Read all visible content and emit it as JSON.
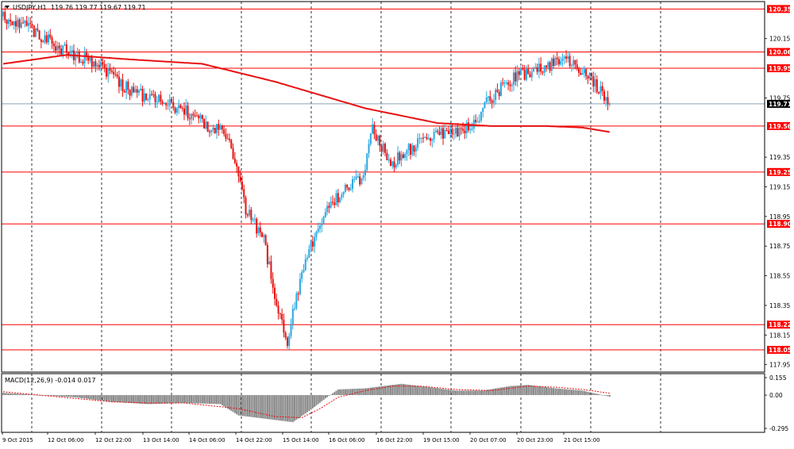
{
  "header": {
    "symbol": "USDJPY,H1",
    "ohlc": "119.76 119.77 119.67 119.71"
  },
  "macd_panel": {
    "label": "MACD(12,26,9) -0.014 0.017"
  },
  "colors": {
    "bull": "#2aa8e0",
    "bear": "#e81010",
    "level_line": "#ff0000",
    "moving_average": "#e81010",
    "grid": "#000000",
    "macd_hist": "#808080",
    "signal": "#e81010",
    "current_price_line": "#8aa0b8"
  },
  "chart_data": [
    {
      "type": "candlestick",
      "symbol": "USDJPY",
      "timeframe": "H1",
      "ylim": [
        117.9,
        120.4
      ],
      "y_ticks": [
        120.15,
        119.75,
        119.35,
        119.15,
        118.95,
        118.75,
        118.55,
        118.35,
        118.15,
        117.95
      ],
      "x_tick_labels": [
        "9 Oct 2015",
        "12 Oct 06:00",
        "12 Oct 22:00",
        "13 Oct 14:00",
        "14 Oct 06:00",
        "14 Oct 22:00",
        "15 Oct 14:00",
        "16 Oct 06:00",
        "16 Oct 22:00",
        "19 Oct 15:00",
        "20 Oct 07:00",
        "20 Oct 23:00",
        "21 Oct 15:00"
      ],
      "grid": "vertical dashed",
      "current_price": 119.71,
      "levels": [
        120.35,
        120.06,
        119.95,
        119.56,
        119.25,
        118.9,
        118.22,
        118.05
      ],
      "moving_average_keypoints": [
        [
          0,
          119.98
        ],
        [
          35,
          120.04
        ],
        [
          70,
          120.01
        ],
        [
          110,
          119.98
        ],
        [
          150,
          119.86
        ],
        [
          200,
          119.68
        ],
        [
          240,
          119.58
        ],
        [
          270,
          119.56
        ],
        [
          300,
          119.56
        ],
        [
          320,
          119.55
        ],
        [
          335,
          119.52
        ]
      ],
      "candle_keypoints": [
        [
          0,
          120.3
        ],
        [
          15,
          120.22
        ],
        [
          35,
          120.07
        ],
        [
          50,
          120.0
        ],
        [
          65,
          119.85
        ],
        [
          80,
          119.75
        ],
        [
          100,
          119.68
        ],
        [
          115,
          119.55
        ],
        [
          125,
          119.5
        ],
        [
          135,
          119.0
        ],
        [
          145,
          118.8
        ],
        [
          152,
          118.35
        ],
        [
          158,
          118.12
        ],
        [
          165,
          118.5
        ],
        [
          175,
          118.9
        ],
        [
          190,
          119.15
        ],
        [
          200,
          119.2
        ],
        [
          205,
          119.55
        ],
        [
          215,
          119.3
        ],
        [
          225,
          119.4
        ],
        [
          240,
          119.5
        ],
        [
          260,
          119.55
        ],
        [
          270,
          119.75
        ],
        [
          285,
          119.9
        ],
        [
          300,
          119.95
        ],
        [
          310,
          120.02
        ],
        [
          325,
          119.9
        ],
        [
          335,
          119.71
        ]
      ],
      "candle_count": 336
    },
    {
      "type": "bar",
      "name": "MACD(12,26,9)",
      "macd": -0.014,
      "signal": 0.017,
      "ylim": [
        -0.33,
        0.19
      ],
      "y_ticks": [
        0.155,
        0.0,
        -0.295
      ],
      "histogram_keypoints": [
        [
          0,
          0.02
        ],
        [
          20,
          0.0
        ],
        [
          40,
          -0.02
        ],
        [
          60,
          -0.06
        ],
        [
          80,
          -0.08
        ],
        [
          100,
          -0.07
        ],
        [
          120,
          -0.08
        ],
        [
          130,
          -0.18
        ],
        [
          140,
          -0.2
        ],
        [
          150,
          -0.22
        ],
        [
          160,
          -0.24
        ],
        [
          170,
          -0.13
        ],
        [
          178,
          -0.03
        ],
        [
          185,
          0.05
        ],
        [
          200,
          0.06
        ],
        [
          210,
          0.08
        ],
        [
          220,
          0.1
        ],
        [
          235,
          0.07
        ],
        [
          250,
          0.04
        ],
        [
          265,
          0.04
        ],
        [
          280,
          0.08
        ],
        [
          290,
          0.09
        ],
        [
          305,
          0.06
        ],
        [
          320,
          0.04
        ],
        [
          335,
          -0.014
        ]
      ],
      "signal_keypoints": [
        [
          0,
          0.03
        ],
        [
          20,
          0.0
        ],
        [
          40,
          -0.03
        ],
        [
          60,
          -0.06
        ],
        [
          80,
          -0.07
        ],
        [
          100,
          -0.07
        ],
        [
          130,
          -0.12
        ],
        [
          150,
          -0.19
        ],
        [
          165,
          -0.2
        ],
        [
          175,
          -0.12
        ],
        [
          185,
          -0.02
        ],
        [
          200,
          0.04
        ],
        [
          215,
          0.08
        ],
        [
          230,
          0.08
        ],
        [
          250,
          0.05
        ],
        [
          270,
          0.04
        ],
        [
          290,
          0.08
        ],
        [
          305,
          0.07
        ],
        [
          320,
          0.05
        ],
        [
          335,
          0.017
        ]
      ]
    }
  ]
}
